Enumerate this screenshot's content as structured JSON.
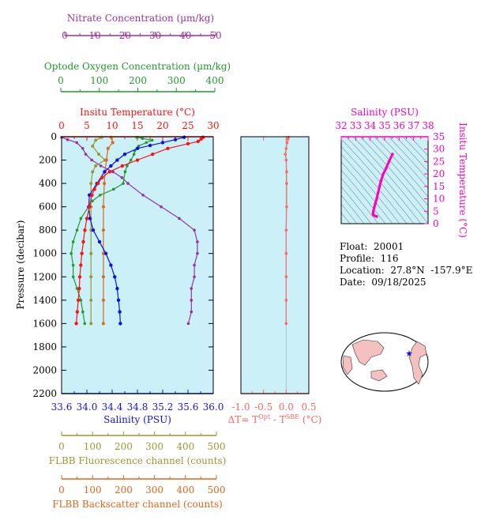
{
  "colors": {
    "nitrate": "#993399",
    "oxygen": "#22992e",
    "temperature": "#ff1111",
    "salinity": "#1111dd",
    "fluorescence": "#999933",
    "backscatter": "#e0661c",
    "delta": "#ff6666",
    "ts": "#ff00bb",
    "panel_bg": "#ccf0f8",
    "axis": "#000000"
  },
  "axes": {
    "nitrate": {
      "label": "Nitrate Concentration (µm/kg)",
      "ticks": [
        "0",
        "10",
        "20",
        "30",
        "40",
        "50"
      ]
    },
    "oxygen": {
      "label": "Optode Oxygen Concentration (µm/kg)",
      "ticks": [
        "0",
        "100",
        "200",
        "300",
        "400"
      ]
    },
    "temperature": {
      "label": "Insitu Temperature (°C)",
      "ticks": [
        "0",
        "5",
        "10",
        "15",
        "20",
        "25",
        "30"
      ]
    },
    "pressure": {
      "label": "Pressure (decibar)",
      "ticks": [
        "0",
        "200",
        "400",
        "600",
        "800",
        "1000",
        "1200",
        "1400",
        "1600",
        "1800",
        "2000",
        "2200"
      ]
    },
    "salinity": {
      "label": "Salinity (PSU)",
      "ticks": [
        "33.6",
        "34.0",
        "34.4",
        "34.8",
        "35.2",
        "35.6",
        "36.0"
      ]
    },
    "fluorescence": {
      "label": "FLBB Fluorescence channel (counts)",
      "ticks": [
        "0",
        "100",
        "200",
        "300",
        "400",
        "500"
      ]
    },
    "backscatter": {
      "label": "FLBB Backscatter channel (counts)",
      "ticks": [
        "0",
        "100",
        "200",
        "300",
        "400",
        "500"
      ]
    },
    "delta": {
      "ticks": [
        "-1.0",
        "-0.5",
        "0.0",
        "0.5"
      ],
      "label_main": "ΔT= T",
      "label_sup1": "Opt",
      "label_mid": " - T",
      "label_sup2": "SBE",
      "label_end": " (°C)"
    },
    "ts_salinity": {
      "label": "Salinity (PSU)",
      "ticks": [
        "32",
        "33",
        "34",
        "35",
        "36",
        "37",
        "38"
      ]
    },
    "ts_temperature": {
      "label": "Insitu Temperature (°C)",
      "ticks": [
        "0",
        "5",
        "10",
        "15",
        "20",
        "25",
        "30",
        "35"
      ]
    }
  },
  "info": {
    "float": "Float:  20001",
    "profile": "Profile:  116",
    "location": "Location:  27.8°N  -157.9°E",
    "date": "Date:  09/18/2025"
  },
  "chart_data": [
    {
      "type": "line",
      "id": "profile",
      "pressure_range": [
        0,
        2200
      ],
      "nitrate": {
        "xlim": [
          0,
          50
        ],
        "points": [
          [
            0,
            5
          ],
          [
            2,
            25
          ],
          [
            5,
            50
          ],
          [
            7,
            100
          ],
          [
            8,
            150
          ],
          [
            10,
            200
          ],
          [
            13,
            250
          ],
          [
            17,
            300
          ],
          [
            20,
            350
          ],
          [
            22,
            400
          ],
          [
            27,
            500
          ],
          [
            33,
            600
          ],
          [
            39,
            700
          ],
          [
            44,
            800
          ],
          [
            45,
            900
          ],
          [
            45,
            1000
          ],
          [
            44,
            1100
          ],
          [
            44,
            1200
          ],
          [
            43,
            1300
          ],
          [
            43,
            1400
          ],
          [
            43,
            1500
          ],
          [
            42,
            1600
          ]
        ]
      },
      "oxygen": {
        "xlim": [
          0,
          400
        ],
        "points": [
          [
            195,
            5
          ],
          [
            210,
            15
          ],
          [
            235,
            30
          ],
          [
            220,
            50
          ],
          [
            200,
            80
          ],
          [
            190,
            120
          ],
          [
            188,
            150
          ],
          [
            180,
            200
          ],
          [
            170,
            250
          ],
          [
            165,
            300
          ],
          [
            160,
            400
          ],
          [
            135,
            450
          ],
          [
            100,
            500
          ],
          [
            80,
            550
          ],
          [
            70,
            600
          ],
          [
            50,
            700
          ],
          [
            40,
            800
          ],
          [
            30,
            900
          ],
          [
            25,
            1000
          ],
          [
            30,
            1100
          ],
          [
            30,
            1200
          ],
          [
            40,
            1300
          ],
          [
            50,
            1400
          ],
          [
            55,
            1500
          ],
          [
            60,
            1600
          ]
        ]
      },
      "temperature": {
        "xlim": [
          0,
          30
        ],
        "points": [
          [
            28,
            5
          ],
          [
            27.6,
            20
          ],
          [
            27,
            40
          ],
          [
            25,
            60
          ],
          [
            21,
            100
          ],
          [
            18,
            150
          ],
          [
            15,
            200
          ],
          [
            12,
            250
          ],
          [
            9.5,
            300
          ],
          [
            8,
            350
          ],
          [
            7.2,
            400
          ],
          [
            6.5,
            450
          ],
          [
            6,
            500
          ],
          [
            5.5,
            600
          ],
          [
            5,
            700
          ],
          [
            4.6,
            800
          ],
          [
            4.3,
            900
          ],
          [
            4,
            1000
          ],
          [
            3.8,
            1100
          ],
          [
            3.6,
            1200
          ],
          [
            3.5,
            1300
          ],
          [
            3.3,
            1400
          ],
          [
            3.1,
            1500
          ],
          [
            2.9,
            1600
          ]
        ]
      },
      "salinity": {
        "xlim": [
          33.6,
          36.0
        ],
        "points": [
          [
            35.54,
            5
          ],
          [
            35.4,
            25
          ],
          [
            35.2,
            50
          ],
          [
            35.0,
            75
          ],
          [
            34.8,
            100
          ],
          [
            34.6,
            150
          ],
          [
            34.48,
            200
          ],
          [
            34.38,
            250
          ],
          [
            34.28,
            300
          ],
          [
            34.16,
            400
          ],
          [
            34.04,
            500
          ],
          [
            34.03,
            600
          ],
          [
            34.05,
            700
          ],
          [
            34.1,
            800
          ],
          [
            34.2,
            900
          ],
          [
            34.3,
            1000
          ],
          [
            34.38,
            1100
          ],
          [
            34.44,
            1200
          ],
          [
            34.48,
            1300
          ],
          [
            34.5,
            1400
          ],
          [
            34.52,
            1500
          ],
          [
            34.53,
            1600
          ]
        ]
      },
      "fluorescence": {
        "xlim": [
          0,
          500
        ],
        "points": [
          [
            130,
            5
          ],
          [
            110,
            30
          ],
          [
            100,
            80
          ],
          [
            120,
            150
          ],
          [
            140,
            200
          ],
          [
            110,
            250
          ],
          [
            100,
            300
          ],
          [
            95,
            400
          ],
          [
            95,
            600
          ],
          [
            95,
            800
          ],
          [
            95,
            1000
          ],
          [
            95,
            1200
          ],
          [
            95,
            1400
          ],
          [
            95,
            1600
          ]
        ]
      },
      "backscatter": {
        "xlim": [
          0,
          500
        ],
        "points": [
          [
            160,
            5
          ],
          [
            165,
            50
          ],
          [
            150,
            100
          ],
          [
            145,
            200
          ],
          [
            140,
            300
          ],
          [
            138,
            400
          ],
          [
            135,
            600
          ],
          [
            135,
            800
          ],
          [
            135,
            1000
          ],
          [
            135,
            1200
          ],
          [
            135,
            1400
          ],
          [
            135,
            1600
          ]
        ]
      },
      "delta_t": {
        "xlim": [
          -1.0,
          0.5
        ],
        "points": [
          [
            0.05,
            5
          ],
          [
            0.04,
            20
          ],
          [
            0.02,
            50
          ],
          [
            0.0,
            100
          ],
          [
            -0.02,
            150
          ],
          [
            0.0,
            200
          ],
          [
            0.01,
            300
          ],
          [
            0.01,
            400
          ],
          [
            0.01,
            600
          ],
          [
            0.0,
            800
          ],
          [
            0.0,
            1000
          ],
          [
            0.0,
            1200
          ],
          [
            0.0,
            1400
          ],
          [
            0.0,
            1600
          ]
        ]
      }
    },
    {
      "type": "scatter",
      "id": "ts_diagram",
      "xlim": [
        32,
        38
      ],
      "ylim": [
        0,
        35
      ],
      "points": [
        [
          35.54,
          28
        ],
        [
          35.3,
          25
        ],
        [
          35.1,
          22.3
        ],
        [
          34.9,
          20
        ],
        [
          34.75,
          17.3
        ],
        [
          34.65,
          15
        ],
        [
          34.55,
          12.5
        ],
        [
          34.45,
          10
        ],
        [
          34.35,
          8
        ],
        [
          34.28,
          6.5
        ],
        [
          34.22,
          5
        ],
        [
          34.2,
          4
        ],
        [
          34.22,
          3.5
        ],
        [
          34.35,
          3.1
        ],
        [
          34.45,
          2.9
        ]
      ]
    }
  ]
}
